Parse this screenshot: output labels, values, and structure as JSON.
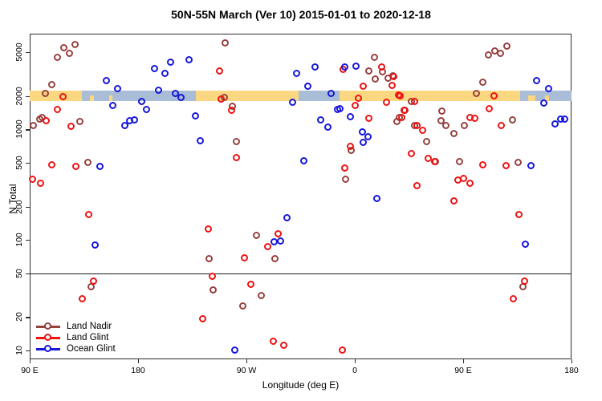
{
  "chart_data": {
    "type": "scatter",
    "title": "50N-55N March (Ver 10)   2015-01-01 to 2020-12-18",
    "xlabel": "Longitude (deg E)",
    "ylabel": "N Total",
    "x_axis": {
      "note": "longitude wrapped, plotted 90E eastward around globe to 180",
      "range": [
        90,
        540
      ],
      "ticks": [
        {
          "pos": 90,
          "label": "90 E"
        },
        {
          "pos": 180,
          "label": "180"
        },
        {
          "pos": 270,
          "label": "90 W"
        },
        {
          "pos": 360,
          "label": "0"
        },
        {
          "pos": 450,
          "label": "90 E"
        },
        {
          "pos": 540,
          "label": "180"
        }
      ]
    },
    "y_axis": {
      "scale": "log",
      "range": [
        8.3,
        7340
      ],
      "ticks": [
        {
          "value": 10,
          "label": "10"
        },
        {
          "value": 20,
          "label": "20"
        },
        {
          "value": 50,
          "label": "50"
        },
        {
          "value": 100,
          "label": "100"
        },
        {
          "value": 200,
          "label": "200"
        },
        {
          "value": 500,
          "label": "500"
        },
        {
          "value": 1000,
          "label": "1000"
        },
        {
          "value": 2000,
          "label": "2000"
        },
        {
          "value": 5000,
          "label": "5000"
        }
      ]
    },
    "reference_line_y": 50,
    "surface_band": {
      "center_value": 2000,
      "land_color": "#fbd781",
      "ocean_color": "#a9bdd6",
      "segments": [
        {
          "surface": "land",
          "from": 90,
          "to": 133
        },
        {
          "surface": "ocean",
          "from": 133,
          "to": 228
        },
        {
          "surface": "land",
          "from": 228,
          "to": 313
        },
        {
          "surface": "ocean",
          "from": 313,
          "to": 347
        },
        {
          "surface": "land",
          "from": 347,
          "to": 497
        },
        {
          "surface": "ocean",
          "from": 497,
          "to": 540
        }
      ],
      "islands": [
        {
          "from": 140,
          "to": 143
        },
        {
          "from": 156,
          "to": 158.5
        },
        {
          "from": 504,
          "to": 510
        },
        {
          "from": 518,
          "to": 521
        }
      ]
    },
    "legend": {
      "position": "bottom-left",
      "entries": [
        {
          "label": "Land Nadir",
          "color": "#97403e"
        },
        {
          "label": "Land Glint",
          "color": "#ee1212"
        },
        {
          "label": "Ocean Glint",
          "color": "#1616dd"
        }
      ]
    },
    "series": [
      {
        "name": "Land Nadir",
        "color": "#97403e",
        "points": [
          [
            113.5,
            4450
          ],
          [
            118.5,
            5430
          ],
          [
            123.5,
            4830
          ],
          [
            128,
            5810
          ],
          [
            108.5,
            2520
          ],
          [
            103.5,
            2095
          ],
          [
            100.5,
            1270
          ],
          [
            93.5,
            1074
          ],
          [
            98.5,
            1228
          ],
          [
            132,
            1167
          ],
          [
            138.5,
            498
          ],
          [
            252.5,
            6010
          ],
          [
            252,
            1928
          ],
          [
            258.5,
            1604
          ],
          [
            262,
            769
          ],
          [
            278.5,
            109
          ],
          [
            294,
            67
          ],
          [
            282.5,
            31
          ],
          [
            267.5,
            25
          ],
          [
            242.5,
            35
          ],
          [
            239.5,
            67
          ],
          [
            141.5,
            37
          ],
          [
            357.5,
            640
          ],
          [
            352.5,
            351
          ],
          [
            372,
            3350
          ],
          [
            376.5,
            4450
          ],
          [
            383.5,
            3290
          ],
          [
            377.5,
            2830
          ],
          [
            388,
            2880
          ],
          [
            392,
            3030
          ],
          [
            397.5,
            1270
          ],
          [
            395.5,
            1167
          ],
          [
            410,
            1074
          ],
          [
            407.5,
            1774
          ],
          [
            402,
            1476
          ],
          [
            432.5,
            1452
          ],
          [
            432,
            1188
          ],
          [
            436,
            1074
          ],
          [
            442.5,
            910
          ],
          [
            451.5,
            1074
          ],
          [
            420,
            769
          ],
          [
            447.5,
            506
          ],
          [
            427.5,
            506
          ],
          [
            466.5,
            2650
          ],
          [
            461.5,
            2095
          ],
          [
            471.5,
            4680
          ],
          [
            476.5,
            5080
          ],
          [
            481.5,
            4830
          ],
          [
            486.5,
            5620
          ],
          [
            491.5,
            1208
          ],
          [
            496,
            498
          ],
          [
            500,
            37
          ]
        ]
      },
      {
        "name": "Land Glint",
        "color": "#ee1212",
        "points": [
          [
            118,
            1960
          ],
          [
            113.5,
            1500
          ],
          [
            104,
            1188
          ],
          [
            124.5,
            1057
          ],
          [
            92.5,
            351
          ],
          [
            99.5,
            323
          ],
          [
            108.5,
            474
          ],
          [
            128.5,
            458
          ],
          [
            139.5,
            168
          ],
          [
            143.5,
            42
          ],
          [
            134,
            29
          ],
          [
            248,
            3350
          ],
          [
            249.5,
            1866
          ],
          [
            258,
            1476
          ],
          [
            262,
            551
          ],
          [
            296.5,
            113
          ],
          [
            288,
            86
          ],
          [
            268.5,
            68
          ],
          [
            274,
            39
          ],
          [
            292.5,
            12
          ],
          [
            301.5,
            11
          ],
          [
            350,
            10
          ],
          [
            352,
            443
          ],
          [
            367.5,
            2440
          ],
          [
            350.5,
            3460
          ],
          [
            363.5,
            1897
          ],
          [
            360.5,
            1630
          ],
          [
            386.5,
            1742
          ],
          [
            396.5,
            2028
          ],
          [
            372,
            1248
          ],
          [
            391.5,
            2480
          ],
          [
            401.5,
            1476
          ],
          [
            410,
            1774
          ],
          [
            356.5,
            696
          ],
          [
            382.5,
            3640
          ],
          [
            392.5,
            2980
          ],
          [
            398,
            1995
          ],
          [
            399.5,
            1270
          ],
          [
            412,
            1074
          ],
          [
            416.5,
            973
          ],
          [
            456,
            1270
          ],
          [
            460,
            1248
          ],
          [
            472,
            1528
          ],
          [
            476,
            1995
          ],
          [
            482,
            1074
          ],
          [
            407.5,
            598
          ],
          [
            421.5,
            541
          ],
          [
            426.5,
            506
          ],
          [
            466.5,
            473
          ],
          [
            486,
            465
          ],
          [
            412,
            307
          ],
          [
            446,
            345
          ],
          [
            450.5,
            357
          ],
          [
            456,
            323
          ],
          [
            442.5,
            223
          ],
          [
            496.5,
            168
          ],
          [
            501.5,
            42
          ],
          [
            492,
            29
          ],
          [
            238.5,
            124
          ],
          [
            234,
            19
          ],
          [
            242,
            46
          ]
        ]
      },
      {
        "name": "Ocean Glint",
        "color": "#1616dd",
        "points": [
          [
            154,
            2740
          ],
          [
            163.5,
            2320
          ],
          [
            159.5,
            1630
          ],
          [
            194,
            3520
          ],
          [
            202.5,
            3180
          ],
          [
            207.5,
            4030
          ],
          [
            222.5,
            4230
          ],
          [
            183.5,
            1774
          ],
          [
            187.5,
            1500
          ],
          [
            197.5,
            2240
          ],
          [
            211.5,
            2095
          ],
          [
            216,
            1928
          ],
          [
            169.5,
            1074
          ],
          [
            173.5,
            1188
          ],
          [
            177.5,
            1208
          ],
          [
            228,
            1312
          ],
          [
            232,
            782
          ],
          [
            148.5,
            458
          ],
          [
            144.5,
            89
          ],
          [
            312,
            3180
          ],
          [
            327.5,
            3640
          ],
          [
            321.5,
            2440
          ],
          [
            340.5,
            2095
          ],
          [
            308.5,
            1742
          ],
          [
            352,
            3640
          ],
          [
            361.5,
            3700
          ],
          [
            348,
            1528
          ],
          [
            356.5,
            1291
          ],
          [
            346,
            1500
          ],
          [
            366.5,
            940
          ],
          [
            371.5,
            851
          ],
          [
            367.5,
            757
          ],
          [
            332,
            1208
          ],
          [
            338,
            1038
          ],
          [
            318,
            515
          ],
          [
            378.5,
            235
          ],
          [
            304,
            157
          ],
          [
            298.5,
            97
          ],
          [
            293.5,
            95
          ],
          [
            260.5,
            10
          ],
          [
            502,
            91
          ],
          [
            506.5,
            465
          ],
          [
            511.5,
            2740
          ],
          [
            521.5,
            2320
          ],
          [
            517.5,
            1714
          ],
          [
            526.5,
            1112
          ],
          [
            531.5,
            1228
          ],
          [
            534.5,
            1228
          ]
        ]
      }
    ]
  }
}
